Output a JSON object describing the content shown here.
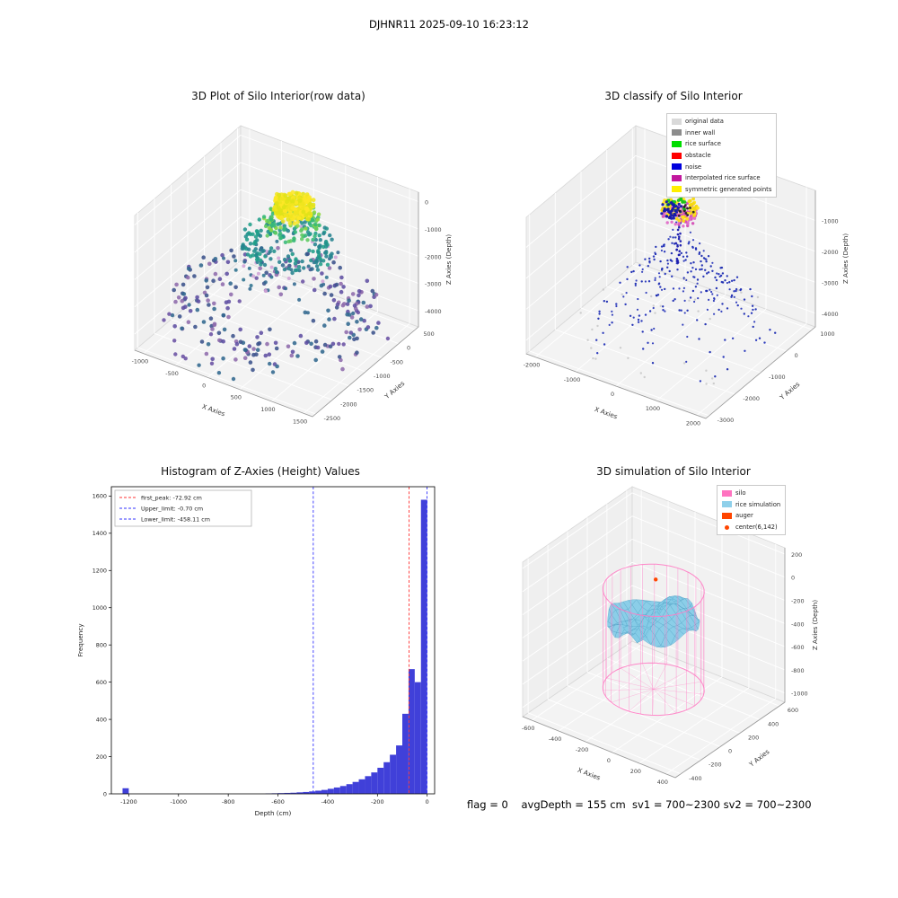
{
  "page": {
    "title": "DJHNR11 2025-09-10 16:23:12",
    "footer": "flag = 0    avgDepth = 155 cm  sv1 = 700~2300 sv2 = 700~2300"
  },
  "chart_data": [
    {
      "id": "raw3d",
      "type": "scatter",
      "projection": "3d",
      "title": "3D Plot of Silo Interior(row data)",
      "xlabel": "X Axies",
      "ylabel": "Y Axies",
      "zlabel": "Z Axies (Depth)",
      "xticks": [
        -1000,
        -500,
        0,
        500,
        1000,
        1500
      ],
      "yticks": [
        -2500,
        -2000,
        -1500,
        -1000,
        -500,
        0,
        500
      ],
      "zticks": [
        -4000,
        -3000,
        -2000,
        -1000,
        0
      ],
      "colormap": "viridis (yellow top ring, green/teal middle rings, blue/purple bottom)",
      "clusters": [
        {
          "shape": "disc",
          "cx": 0.5,
          "cy": 0.5,
          "z": [
            0.02,
            0.12
          ],
          "r": [
            0.3,
            0.55
          ],
          "n": 25,
          "colors": [
            "#31688e",
            "#6a51a3"
          ],
          "size": 2.2
        },
        {
          "shape": "disc",
          "cx": 0.5,
          "cy": 0.5,
          "z": [
            0.1,
            0.32
          ],
          "r": [
            0.14,
            0.5
          ],
          "n": 235,
          "colors": [
            "#31688e",
            "#3b528b",
            "#5e4fa2",
            "#8e6bac"
          ],
          "size": 2.3
        },
        {
          "shape": "disc",
          "cx": 0.52,
          "cy": 0.53,
          "z": [
            0.4,
            0.62
          ],
          "r": [
            0.04,
            0.3
          ],
          "n": 55,
          "colors": [
            "#2c728e",
            "#31688e",
            "#d0a3d6"
          ],
          "size": 2.0
        },
        {
          "shape": "ring",
          "cx": 0.53,
          "cy": 0.55,
          "z": [
            0.6,
            0.76
          ],
          "r": [
            0.15,
            0.22
          ],
          "n": 150,
          "colors": [
            "#21918c",
            "#1f9e89",
            "#26828e"
          ],
          "size": 2.2
        },
        {
          "shape": "ring",
          "cx": 0.54,
          "cy": 0.57,
          "z": [
            0.78,
            0.9
          ],
          "r": [
            0.09,
            0.14
          ],
          "n": 115,
          "colors": [
            "#5ec962",
            "#35b779",
            "#8fd744"
          ],
          "size": 2.2
        },
        {
          "shape": "ring",
          "cx": 0.55,
          "cy": 0.58,
          "z": [
            0.9,
            1.0
          ],
          "r": [
            0.035,
            0.1
          ],
          "n": 300,
          "colors": [
            "#fde725",
            "#f0e51f",
            "#dfe318"
          ],
          "size": 2.4
        }
      ]
    },
    {
      "id": "classify3d",
      "type": "scatter",
      "projection": "3d",
      "title": "3D classify of Silo Interior",
      "xlabel": "X Axies",
      "ylabel": "Y Axies",
      "zlabel": "Z Axies (Depth)",
      "xticks": [
        -2000,
        -1000,
        0,
        1000,
        2000
      ],
      "yticks": [
        -3000,
        -2000,
        -1000,
        0,
        1000
      ],
      "zticks": [
        -4000,
        -3000,
        -2000,
        -1000
      ],
      "legend": [
        {
          "label": "original data",
          "color": "#d9d9d9"
        },
        {
          "label": "inner wall",
          "color": "#8c8c8c"
        },
        {
          "label": "rice surface",
          "color": "#00dd00"
        },
        {
          "label": "obstacle",
          "color": "#ff0000"
        },
        {
          "label": "noise",
          "color": "#0000dd"
        },
        {
          "label": "interpolated rice surface",
          "color": "#c2189e"
        },
        {
          "label": "symmetric generated points",
          "color": "#ffee00"
        }
      ],
      "clusters": [
        {
          "shape": "cone",
          "cx": 0.52,
          "cy": 0.52,
          "z": [
            0.06,
            0.7
          ],
          "rz": [
            0.46,
            0.07
          ],
          "n": 175,
          "colors": [
            "#2231b8",
            "#1b2bb0"
          ],
          "size": 1.2,
          "opacity": 0.95
        },
        {
          "shape": "cone",
          "cx": 0.52,
          "cy": 0.52,
          "z": [
            0.08,
            0.55
          ],
          "rz": [
            0.3,
            0.05
          ],
          "n": 45,
          "colors": [
            "#2231b8"
          ],
          "size": 1.1,
          "opacity": 0.9
        },
        {
          "shape": "disc",
          "cx": 0.52,
          "cy": 0.5,
          "z": [
            0.02,
            0.12
          ],
          "r": [
            0.18,
            0.5
          ],
          "n": 30,
          "colors": [
            "#c9c9c9"
          ],
          "size": 1.2,
          "opacity": 0.9
        },
        {
          "shape": "strand",
          "a": [
            0.49,
            0.6,
            0.8
          ],
          "b": [
            0.22,
            0.38,
            0.1
          ],
          "jitter": 0.025,
          "n": 16,
          "colors": [
            "#2231b8"
          ],
          "size": 1.1,
          "opacity": 0.9
        },
        {
          "shape": "strand",
          "a": [
            0.51,
            0.6,
            0.8
          ],
          "b": [
            0.82,
            0.74,
            0.1
          ],
          "jitter": 0.025,
          "n": 16,
          "colors": [
            "#2231b8"
          ],
          "size": 1.1,
          "opacity": 0.9
        },
        {
          "shape": "strand",
          "a": [
            0.5,
            0.59,
            0.86
          ],
          "b": [
            0.5,
            0.56,
            0.52
          ],
          "jitter": 0.02,
          "n": 24,
          "colors": [
            "#1a1aad"
          ],
          "size": 1.3,
          "opacity": 0.95
        },
        {
          "shape": "disc",
          "cx": 0.5,
          "cy": 0.585,
          "z": [
            0.84,
            0.9
          ],
          "r": [
            0.0,
            0.085
          ],
          "n": 85,
          "colors": [
            "#e06cc8",
            "#d44fb6"
          ],
          "size": 1.7,
          "opacity": 0.95
        },
        {
          "shape": "ring",
          "cx": 0.5,
          "cy": 0.585,
          "z": [
            0.88,
            0.96
          ],
          "r": [
            0.05,
            0.09
          ],
          "n": 75,
          "colors": [
            "#ffe41c",
            "#f5d90f"
          ],
          "size": 1.9,
          "opacity": 0.95
        },
        {
          "shape": "ring",
          "cx": 0.49,
          "cy": 0.58,
          "z": [
            0.92,
            0.98
          ],
          "r": [
            0.02,
            0.05
          ],
          "n": 18,
          "colors": [
            "#16c31f"
          ],
          "size": 1.8,
          "opacity": 0.95
        },
        {
          "shape": "disc",
          "cx": 0.46,
          "cy": 0.57,
          "z": [
            0.83,
            0.93
          ],
          "r": [
            0.0,
            0.05
          ],
          "n": 40,
          "colors": [
            "#1518a8"
          ],
          "size": 1.6,
          "opacity": 0.95
        },
        {
          "shape": "disc",
          "cx": 0.52,
          "cy": 0.6,
          "z": [
            0.87,
            0.92
          ],
          "r": [
            0.0,
            0.04
          ],
          "n": 10,
          "colors": [
            "#222222"
          ],
          "size": 1.4,
          "opacity": 0.95
        }
      ]
    },
    {
      "id": "histogram",
      "type": "bar",
      "title": "Histogram of Z-Axies (Height) Values",
      "xlabel": "Depth (cm)",
      "ylabel": "Frequency",
      "xlim": [
        -1270,
        30
      ],
      "ylim": [
        0,
        1650
      ],
      "xticks": [
        -1200,
        -1000,
        -800,
        -600,
        -400,
        -200,
        0
      ],
      "yticks": [
        0,
        200,
        400,
        600,
        800,
        1000,
        1200,
        1400,
        1600
      ],
      "bar_color": "#4040d9",
      "bins": {
        "start": -1225,
        "width": 25,
        "counts": [
          30,
          0,
          0,
          0,
          0,
          0,
          0,
          0,
          0,
          0,
          0,
          0,
          0,
          0,
          0,
          0,
          0,
          0,
          0,
          0,
          0,
          0,
          0,
          2,
          3,
          4,
          5,
          6,
          8,
          10,
          13,
          17,
          21,
          27,
          34,
          42,
          52,
          64,
          78,
          95,
          115,
          140,
          170,
          210,
          260,
          430,
          670,
          600,
          1580
        ]
      },
      "vlines": [
        {
          "label": "first_peak: -72.92 cm",
          "x": -72.92,
          "color": "#ff3333",
          "style": "dashed"
        },
        {
          "label": "Upper_limit: -0.70 cm",
          "x": -0.7,
          "color": "#3333ff",
          "style": "dashed"
        },
        {
          "label": "Lower_limit: -458.11 cm",
          "x": -458.11,
          "color": "#3333ff",
          "style": "dashed"
        }
      ],
      "legend_position": "upper left",
      "grid": false
    },
    {
      "id": "sim3d",
      "type": "scatter",
      "projection": "3d",
      "title": "3D simulation of Silo Interior",
      "xlabel": "X Axies",
      "ylabel": "Y Axies",
      "zlabel": "Z Axies (Depth)",
      "xticks": [
        -600,
        -400,
        -200,
        0,
        200,
        400
      ],
      "yticks": [
        -400,
        -200,
        0,
        200,
        400,
        600
      ],
      "zticks": [
        -1000,
        -800,
        -600,
        -400,
        -200,
        0,
        200
      ],
      "legend": [
        {
          "label": "silo",
          "color": "#ff73c0"
        },
        {
          "label": "rice simulation",
          "color": "#8fd0ea"
        },
        {
          "label": "auger",
          "color": "#ff4500"
        },
        {
          "label": "center(6,142)",
          "color": "#ff4500",
          "marker": "dot"
        }
      ],
      "cylinder": {
        "cx": 0.47,
        "cy": 0.54,
        "r": 0.27,
        "zb": 0.1,
        "zt": 0.74,
        "color": "#ff7cc4",
        "lines": 26
      },
      "surface": {
        "cx": 0.47,
        "cy": 0.54,
        "r": 0.245,
        "base": 0.52,
        "grid": 13,
        "fill": "#85cbe7",
        "stroke": "#4e9dc3"
      },
      "auger": {
        "pos": [
          0.47,
          0.56,
          0.8
        ],
        "color": "#ff4500"
      }
    }
  ]
}
